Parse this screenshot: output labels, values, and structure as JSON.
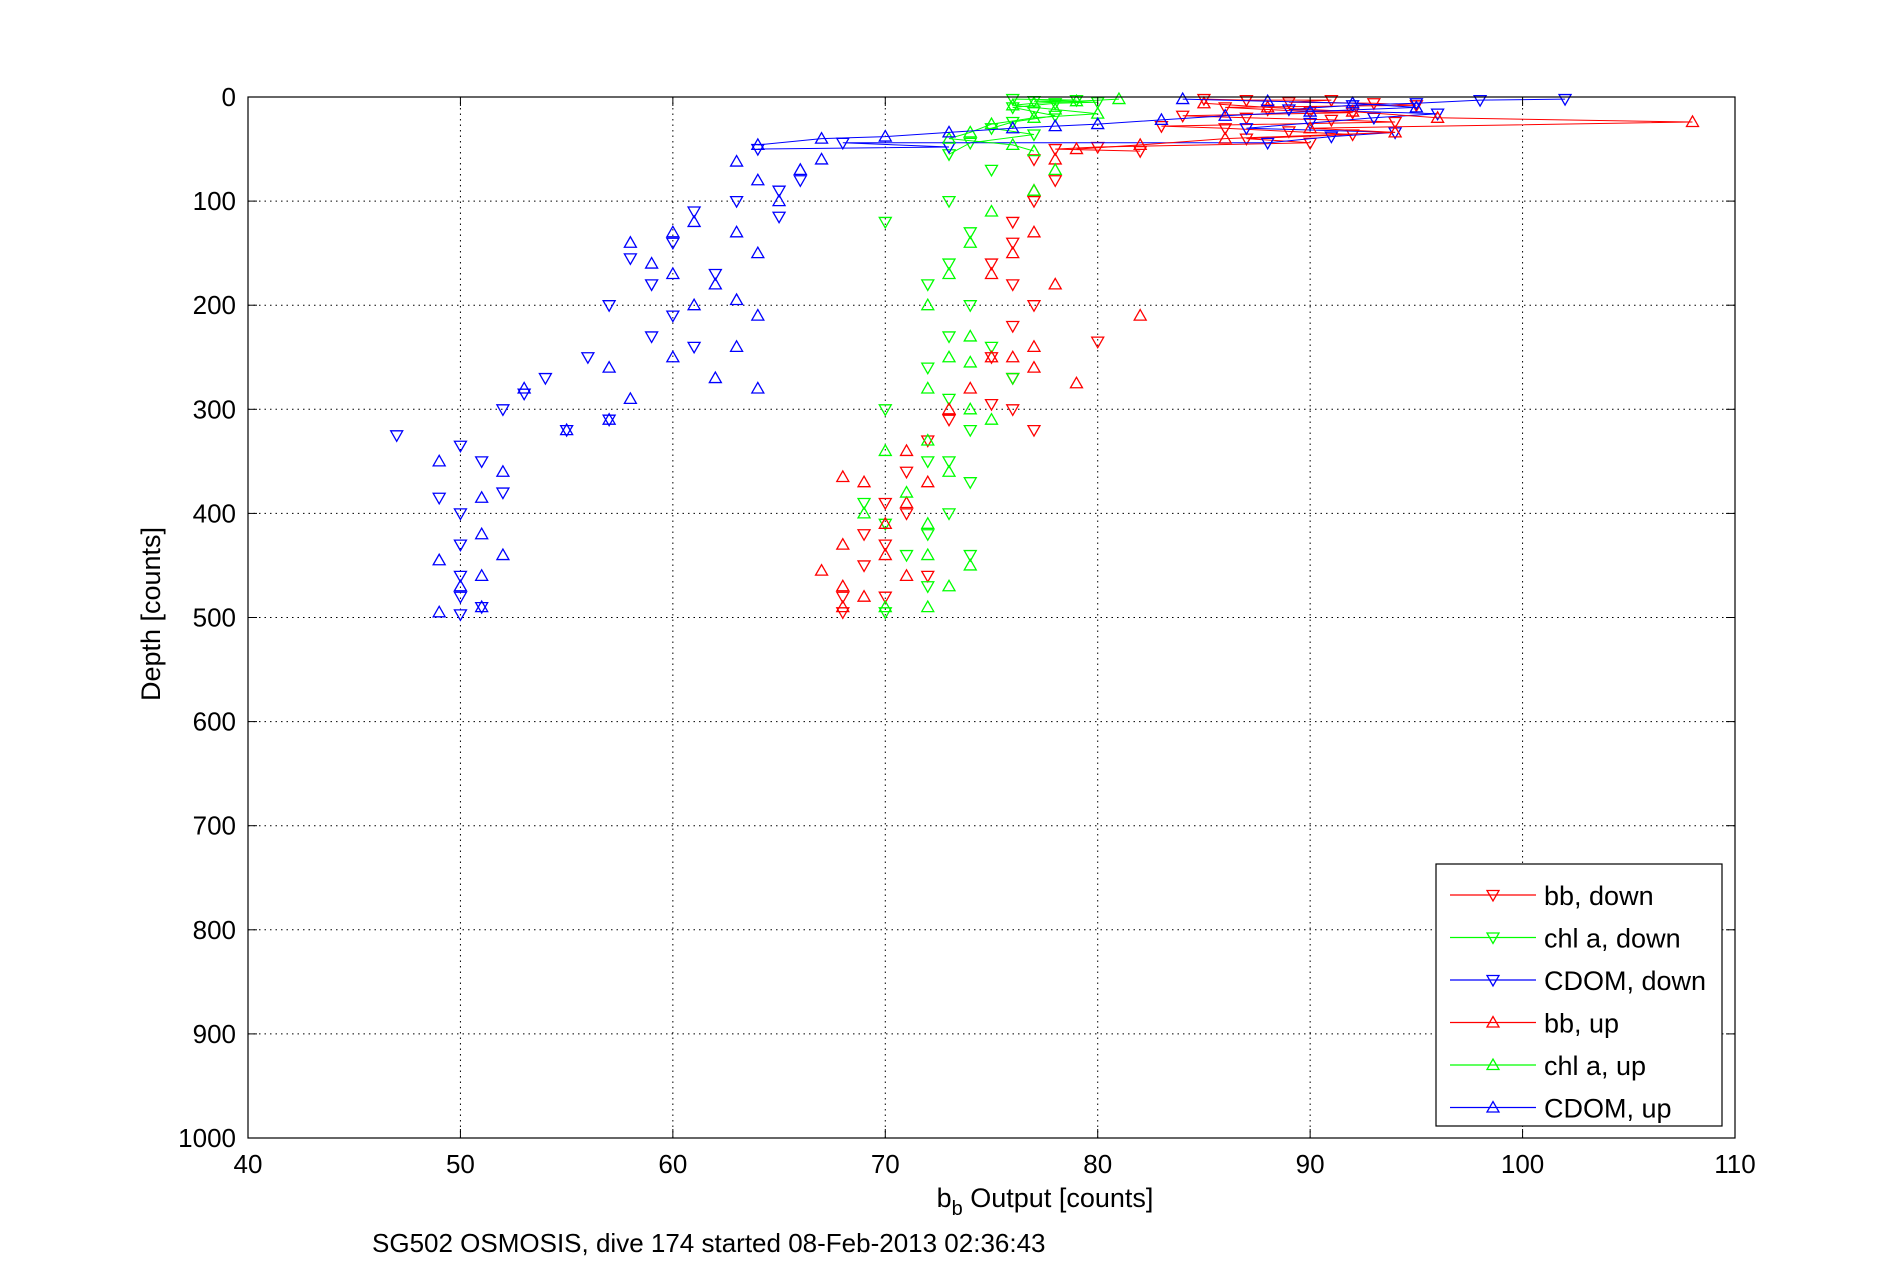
{
  "chart_data": {
    "type": "scatter",
    "title": "",
    "xlabel_main": "b",
    "xlabel_sub": "b",
    "xlabel_rest": " Output [counts]",
    "ylabel": "Depth [counts]",
    "caption": "SG502 OSMOSIS, dive 174 started 08-Feb-2013 02:36:43",
    "xlim": [
      40,
      110
    ],
    "ylim": [
      0,
      1000
    ],
    "y_reversed": true,
    "x_ticks": [
      "40",
      "50",
      "60",
      "70",
      "80",
      "90",
      "100",
      "110"
    ],
    "y_ticks": [
      "0",
      "100",
      "200",
      "300",
      "400",
      "500",
      "600",
      "700",
      "800",
      "900",
      "1000"
    ],
    "grid": "dotted",
    "legend_position": "bottom-right",
    "colors": {
      "red": "#ff0000",
      "green": "#00ff00",
      "blue": "#0000ff"
    },
    "series": [
      {
        "name": "bb, down",
        "color": "#ff0000",
        "marker": "triangle-down",
        "points": [
          [
            85,
            2
          ],
          [
            87,
            3
          ],
          [
            89,
            5
          ],
          [
            91,
            3
          ],
          [
            93,
            6
          ],
          [
            95,
            8
          ],
          [
            86,
            10
          ],
          [
            88,
            12
          ],
          [
            90,
            14
          ],
          [
            92,
            15
          ],
          [
            84,
            18
          ],
          [
            87,
            20
          ],
          [
            91,
            22
          ],
          [
            94,
            24
          ],
          [
            83,
            28
          ],
          [
            86,
            30
          ],
          [
            89,
            33
          ],
          [
            92,
            36
          ],
          [
            87,
            40
          ],
          [
            90,
            44
          ],
          [
            78,
            50
          ],
          [
            80,
            48
          ],
          [
            82,
            52
          ],
          [
            77,
            60
          ],
          [
            78,
            80
          ],
          [
            77,
            100
          ],
          [
            76,
            120
          ],
          [
            76,
            140
          ],
          [
            75,
            160
          ],
          [
            76,
            180
          ],
          [
            77,
            200
          ],
          [
            76,
            220
          ],
          [
            75,
            250
          ],
          [
            76,
            270
          ],
          [
            75,
            295
          ],
          [
            73,
            310
          ],
          [
            72,
            330
          ],
          [
            71,
            360
          ],
          [
            70,
            390
          ],
          [
            69,
            420
          ],
          [
            69,
            450
          ],
          [
            68,
            480
          ],
          [
            68,
            495
          ],
          [
            70,
            480
          ],
          [
            72,
            460
          ],
          [
            71,
            400
          ],
          [
            70,
            430
          ],
          [
            80,
            235
          ],
          [
            76,
            300
          ],
          [
            77,
            320
          ]
        ]
      },
      {
        "name": "chl a, down",
        "color": "#00ff00",
        "marker": "triangle-down",
        "points": [
          [
            76,
            2
          ],
          [
            77,
            4
          ],
          [
            78,
            6
          ],
          [
            79,
            3
          ],
          [
            80,
            5
          ],
          [
            76,
            10
          ],
          [
            77,
            14
          ],
          [
            78,
            18
          ],
          [
            76,
            24
          ],
          [
            75,
            30
          ],
          [
            77,
            36
          ],
          [
            74,
            44
          ],
          [
            73,
            55
          ],
          [
            75,
            70
          ],
          [
            73,
            100
          ],
          [
            70,
            120
          ],
          [
            74,
            130
          ],
          [
            73,
            160
          ],
          [
            72,
            180
          ],
          [
            74,
            200
          ],
          [
            73,
            230
          ],
          [
            72,
            260
          ],
          [
            73,
            290
          ],
          [
            74,
            320
          ],
          [
            72,
            350
          ],
          [
            74,
            370
          ],
          [
            73,
            400
          ],
          [
            72,
            420
          ],
          [
            74,
            440
          ],
          [
            72,
            470
          ],
          [
            70,
            495
          ],
          [
            71,
            440
          ],
          [
            70,
            410
          ],
          [
            69,
            390
          ],
          [
            70,
            300
          ],
          [
            75,
            240
          ],
          [
            76,
            270
          ],
          [
            73,
            350
          ]
        ]
      },
      {
        "name": "CDOM, down",
        "color": "#0000ff",
        "marker": "triangle-down",
        "points": [
          [
            102,
            2
          ],
          [
            98,
            3
          ],
          [
            95,
            6
          ],
          [
            92,
            8
          ],
          [
            89,
            12
          ],
          [
            96,
            16
          ],
          [
            93,
            20
          ],
          [
            90,
            25
          ],
          [
            87,
            30
          ],
          [
            94,
            34
          ],
          [
            91,
            38
          ],
          [
            88,
            44
          ],
          [
            73,
            48
          ],
          [
            68,
            44
          ],
          [
            64,
            50
          ],
          [
            66,
            80
          ],
          [
            65,
            90
          ],
          [
            63,
            100
          ],
          [
            61,
            110
          ],
          [
            65,
            115
          ],
          [
            60,
            140
          ],
          [
            58,
            155
          ],
          [
            62,
            170
          ],
          [
            57,
            200
          ],
          [
            59,
            230
          ],
          [
            56,
            250
          ],
          [
            54,
            270
          ],
          [
            52,
            300
          ],
          [
            53,
            285
          ],
          [
            47,
            325
          ],
          [
            50,
            335
          ],
          [
            51,
            350
          ],
          [
            49,
            385
          ],
          [
            50,
            400
          ],
          [
            50,
            430
          ],
          [
            50,
            460
          ],
          [
            50,
            480
          ],
          [
            50,
            497
          ],
          [
            51,
            490
          ],
          [
            52,
            380
          ],
          [
            55,
            320
          ],
          [
            57,
            310
          ],
          [
            60,
            210
          ],
          [
            61,
            240
          ],
          [
            59,
            180
          ]
        ]
      },
      {
        "name": "bb, up",
        "color": "#ff0000",
        "marker": "triangle-up",
        "points": [
          [
            108,
            24
          ],
          [
            96,
            20
          ],
          [
            92,
            14
          ],
          [
            88,
            10
          ],
          [
            85,
            6
          ],
          [
            90,
            30
          ],
          [
            94,
            34
          ],
          [
            86,
            40
          ],
          [
            82,
            46
          ],
          [
            79,
            50
          ],
          [
            78,
            60
          ],
          [
            77,
            90
          ],
          [
            77,
            130
          ],
          [
            76,
            150
          ],
          [
            75,
            170
          ],
          [
            78,
            180
          ],
          [
            82,
            210
          ],
          [
            77,
            240
          ],
          [
            76,
            250
          ],
          [
            77,
            260
          ],
          [
            79,
            275
          ],
          [
            73,
            300
          ],
          [
            71,
            340
          ],
          [
            72,
            370
          ],
          [
            71,
            390
          ],
          [
            70,
            410
          ],
          [
            68,
            430
          ],
          [
            67,
            455
          ],
          [
            68,
            470
          ],
          [
            68,
            490
          ],
          [
            69,
            480
          ],
          [
            71,
            460
          ],
          [
            70,
            440
          ],
          [
            69,
            370
          ],
          [
            68,
            365
          ],
          [
            75,
            250
          ],
          [
            74,
            280
          ]
        ]
      },
      {
        "name": "chl a, up",
        "color": "#00ff00",
        "marker": "triangle-up",
        "points": [
          [
            81,
            2
          ],
          [
            79,
            4
          ],
          [
            77,
            6
          ],
          [
            76,
            8
          ],
          [
            78,
            12
          ],
          [
            80,
            16
          ],
          [
            77,
            20
          ],
          [
            75,
            26
          ],
          [
            74,
            34
          ],
          [
            73,
            40
          ],
          [
            76,
            46
          ],
          [
            77,
            52
          ],
          [
            78,
            70
          ],
          [
            77,
            90
          ],
          [
            75,
            110
          ],
          [
            74,
            140
          ],
          [
            73,
            170
          ],
          [
            72,
            200
          ],
          [
            74,
            230
          ],
          [
            73,
            250
          ],
          [
            72,
            280
          ],
          [
            74,
            300
          ],
          [
            72,
            330
          ],
          [
            73,
            360
          ],
          [
            70,
            340
          ],
          [
            71,
            380
          ],
          [
            69,
            400
          ],
          [
            72,
            410
          ],
          [
            72,
            440
          ],
          [
            74,
            450
          ],
          [
            73,
            470
          ],
          [
            72,
            490
          ],
          [
            70,
            490
          ],
          [
            75,
            310
          ],
          [
            74,
            255
          ]
        ]
      },
      {
        "name": "CDOM, up",
        "color": "#0000ff",
        "marker": "triangle-up",
        "points": [
          [
            84,
            2
          ],
          [
            88,
            4
          ],
          [
            92,
            6
          ],
          [
            95,
            10
          ],
          [
            90,
            14
          ],
          [
            86,
            18
          ],
          [
            83,
            22
          ],
          [
            80,
            26
          ],
          [
            78,
            28
          ],
          [
            76,
            30
          ],
          [
            73,
            34
          ],
          [
            70,
            38
          ],
          [
            67,
            40
          ],
          [
            64,
            46
          ],
          [
            63,
            62
          ],
          [
            64,
            80
          ],
          [
            66,
            70
          ],
          [
            67,
            60
          ],
          [
            65,
            100
          ],
          [
            63,
            130
          ],
          [
            64,
            150
          ],
          [
            60,
            130
          ],
          [
            59,
            160
          ],
          [
            61,
            120
          ],
          [
            62,
            180
          ],
          [
            58,
            140
          ],
          [
            60,
            170
          ],
          [
            63,
            195
          ],
          [
            61,
            200
          ],
          [
            60,
            250
          ],
          [
            57,
            260
          ],
          [
            58,
            290
          ],
          [
            57,
            310
          ],
          [
            55,
            320
          ],
          [
            53,
            280
          ],
          [
            52,
            360
          ],
          [
            51,
            385
          ],
          [
            51,
            420
          ],
          [
            52,
            440
          ],
          [
            51,
            460
          ],
          [
            50,
            470
          ],
          [
            49,
            445
          ],
          [
            49,
            495
          ],
          [
            49,
            350
          ],
          [
            51,
            490
          ],
          [
            64,
            210
          ],
          [
            63,
            240
          ],
          [
            62,
            270
          ],
          [
            64,
            280
          ]
        ]
      }
    ]
  }
}
